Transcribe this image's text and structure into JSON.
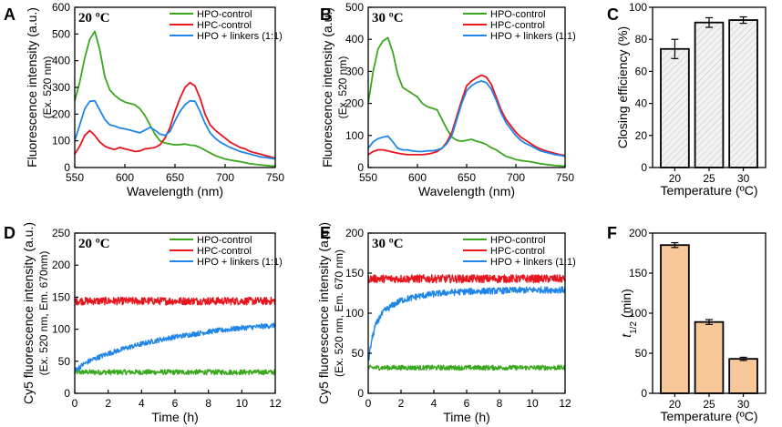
{
  "colors": {
    "green": "#3aa81e",
    "red": "#e8141e",
    "blue": "#1f86e8",
    "bar_gray": "#f2f2f2",
    "bar_orange": "#f8c89a"
  },
  "chart_data": [
    {
      "id": "A",
      "type": "line",
      "panel_letter": "A",
      "title": "20 ºC",
      "xlabel": "Wavelength (nm)",
      "ylabel": "Fluorescence intensity (a.u.)",
      "ylabel2": "(Ex. 520 nm)",
      "xlim": [
        550,
        750
      ],
      "ylim": [
        0,
        600
      ],
      "xticks": [
        "550",
        "600",
        "650",
        "700",
        "750"
      ],
      "yticks": [
        "0",
        "100",
        "200",
        "300",
        "400",
        "500",
        "600"
      ],
      "legend": [
        "HPO-control",
        "HPC-control",
        "HPO + linkers (1:1)"
      ],
      "series": [
        {
          "name": "HPO-control",
          "color": "green",
          "x": [
            550,
            555,
            560,
            565,
            570,
            575,
            580,
            585,
            590,
            595,
            600,
            605,
            610,
            615,
            620,
            625,
            630,
            635,
            640,
            645,
            650,
            655,
            660,
            665,
            670,
            675,
            680,
            685,
            690,
            695,
            700,
            705,
            710,
            715,
            720,
            725,
            730,
            735,
            740,
            745,
            750
          ],
          "y": [
            250,
            320,
            410,
            480,
            510,
            440,
            340,
            290,
            270,
            255,
            245,
            240,
            235,
            220,
            195,
            160,
            125,
            100,
            92,
            88,
            85,
            86,
            88,
            84,
            82,
            75,
            65,
            55,
            45,
            38,
            32,
            28,
            25,
            22,
            18,
            14,
            12,
            10,
            8,
            6,
            5
          ]
        },
        {
          "name": "HPC-control",
          "color": "red",
          "x": [
            550,
            555,
            560,
            565,
            570,
            575,
            580,
            585,
            590,
            595,
            600,
            605,
            610,
            615,
            620,
            625,
            630,
            635,
            640,
            645,
            650,
            655,
            660,
            665,
            670,
            675,
            680,
            685,
            690,
            695,
            700,
            705,
            710,
            715,
            720,
            725,
            730,
            735,
            740,
            745,
            750
          ],
          "y": [
            50,
            80,
            120,
            138,
            120,
            95,
            80,
            72,
            68,
            75,
            70,
            65,
            60,
            62,
            70,
            72,
            75,
            85,
            110,
            150,
            210,
            260,
            300,
            318,
            305,
            260,
            200,
            160,
            140,
            125,
            110,
            95,
            85,
            75,
            70,
            60,
            55,
            50,
            45,
            40,
            35
          ]
        },
        {
          "name": "HPO + linkers (1:1)",
          "color": "blue",
          "x": [
            550,
            555,
            560,
            565,
            570,
            575,
            580,
            585,
            590,
            595,
            600,
            605,
            610,
            615,
            620,
            625,
            630,
            635,
            640,
            645,
            650,
            655,
            660,
            665,
            670,
            675,
            680,
            685,
            690,
            695,
            700,
            705,
            710,
            715,
            720,
            725,
            730,
            735,
            740,
            745,
            750
          ],
          "y": [
            100,
            160,
            220,
            248,
            250,
            215,
            180,
            160,
            155,
            148,
            145,
            140,
            135,
            130,
            140,
            150,
            140,
            125,
            120,
            135,
            175,
            210,
            235,
            250,
            248,
            210,
            165,
            130,
            110,
            95,
            85,
            75,
            68,
            60,
            55,
            50,
            45,
            40,
            38,
            35,
            32
          ]
        }
      ]
    },
    {
      "id": "B",
      "type": "line",
      "panel_letter": "B",
      "title": "30 ºC",
      "xlabel": "Wavelength (nm)",
      "ylabel": "Fluorescence intensity (a.u.)",
      "ylabel2": "(Ex. 520 nm)",
      "xlim": [
        550,
        750
      ],
      "ylim": [
        0,
        500
      ],
      "xticks": [
        "550",
        "600",
        "650",
        "700",
        "750"
      ],
      "yticks": [
        "0",
        "100",
        "200",
        "300",
        "400",
        "500"
      ],
      "legend": [
        "HPO-control",
        "HPC-control",
        "HPO + linkers (1:1)"
      ],
      "series": [
        {
          "name": "HPO-control",
          "color": "green",
          "x": [
            550,
            555,
            560,
            565,
            570,
            575,
            580,
            585,
            590,
            595,
            600,
            605,
            610,
            615,
            620,
            625,
            630,
            635,
            640,
            645,
            650,
            655,
            660,
            665,
            670,
            675,
            680,
            685,
            690,
            695,
            700,
            705,
            710,
            715,
            720,
            725,
            730,
            735,
            740,
            745,
            750
          ],
          "y": [
            200,
            300,
            370,
            395,
            405,
            360,
            290,
            250,
            240,
            230,
            220,
            200,
            190,
            185,
            180,
            150,
            120,
            95,
            85,
            82,
            85,
            88,
            82,
            78,
            72,
            62,
            55,
            45,
            35,
            30,
            25,
            22,
            20,
            18,
            15,
            12,
            10,
            8,
            6,
            5,
            4
          ]
        },
        {
          "name": "HPC-control",
          "color": "red",
          "x": [
            550,
            555,
            560,
            565,
            570,
            575,
            580,
            585,
            590,
            595,
            600,
            605,
            610,
            615,
            620,
            625,
            630,
            635,
            640,
            645,
            650,
            655,
            660,
            665,
            670,
            675,
            680,
            685,
            690,
            695,
            700,
            705,
            710,
            715,
            720,
            725,
            730,
            735,
            740,
            745,
            750
          ],
          "y": [
            40,
            50,
            55,
            55,
            52,
            48,
            45,
            42,
            40,
            40,
            40,
            40,
            42,
            45,
            50,
            60,
            80,
            110,
            160,
            210,
            255,
            270,
            280,
            288,
            282,
            260,
            220,
            180,
            150,
            130,
            110,
            95,
            85,
            75,
            65,
            58,
            52,
            48,
            44,
            40,
            38
          ]
        },
        {
          "name": "HPO + linkers (1:1)",
          "color": "blue",
          "x": [
            550,
            555,
            560,
            565,
            570,
            575,
            580,
            585,
            590,
            595,
            600,
            605,
            610,
            615,
            620,
            625,
            630,
            635,
            640,
            645,
            650,
            655,
            660,
            665,
            670,
            675,
            680,
            685,
            690,
            695,
            700,
            705,
            710,
            715,
            720,
            725,
            730,
            735,
            740,
            745,
            750
          ],
          "y": [
            60,
            80,
            90,
            95,
            98,
            80,
            60,
            55,
            55,
            52,
            50,
            50,
            52,
            52,
            55,
            60,
            75,
            100,
            150,
            200,
            240,
            255,
            265,
            270,
            265,
            245,
            210,
            170,
            140,
            120,
            100,
            85,
            75,
            68,
            60,
            52,
            48,
            44,
            40,
            38,
            35
          ]
        }
      ]
    },
    {
      "id": "C",
      "type": "bar",
      "panel_letter": "C",
      "categories": [
        "20",
        "25",
        "30"
      ],
      "values": [
        74,
        90.5,
        92
      ],
      "errors": [
        6,
        3,
        2
      ],
      "xlabel": "Temperature (ºC)",
      "ylabel": "Closing efficiency (%)",
      "ylim": [
        0,
        100
      ],
      "yticks": [
        "0",
        "20",
        "40",
        "60",
        "80",
        "100"
      ]
    },
    {
      "id": "D",
      "type": "line",
      "panel_letter": "D",
      "title": "20 ºC",
      "xlabel": "Time (h)",
      "ylabel": "Cy5 fluorescence intensity (a.u.)",
      "ylabel2": "(Ex. 520 nm, Em. 670nm)",
      "xlim": [
        0,
        12
      ],
      "ylim": [
        0,
        250
      ],
      "xticks": [
        "0",
        "2",
        "4",
        "6",
        "8",
        "10",
        "12"
      ],
      "yticks": [
        "0",
        "50",
        "100",
        "150",
        "200",
        "250"
      ],
      "legend": [
        "HPO-control",
        "HPC-control",
        "HPO + linkers (1:1)"
      ],
      "series": [
        {
          "name": "HPO-control",
          "color": "green",
          "x": [
            0,
            12
          ],
          "y": [
            33,
            33
          ],
          "noise": 4
        },
        {
          "name": "HPC-control",
          "color": "red",
          "x": [
            0,
            12
          ],
          "y": [
            144,
            144
          ],
          "noise": 6
        },
        {
          "name": "HPO + linkers (1:1)",
          "color": "blue",
          "x": [
            0,
            0.5,
            1,
            2,
            3,
            4,
            5,
            6,
            7,
            8,
            9,
            10,
            11,
            12
          ],
          "y": [
            35,
            45,
            52,
            62,
            70,
            77,
            83,
            88,
            92,
            96,
            99,
            102,
            104,
            106
          ],
          "noise": 4
        }
      ]
    },
    {
      "id": "E",
      "type": "line",
      "panel_letter": "E",
      "title": "30 ºC",
      "xlabel": "Time (h)",
      "ylabel": "Cy5 fluorescence intensity (a.u.)",
      "ylabel2": "(Ex. 520 nm, Em. 670 nm)",
      "xlim": [
        0,
        12
      ],
      "ylim": [
        0,
        200
      ],
      "xticks": [
        "0",
        "2",
        "4",
        "6",
        "8",
        "10",
        "12"
      ],
      "yticks": [
        "0",
        "50",
        "100",
        "150",
        "200"
      ],
      "legend": [
        "HPO-control",
        "HPC-control",
        "HPO + linkers (1:1)"
      ],
      "series": [
        {
          "name": "HPO-control",
          "color": "green",
          "x": [
            0,
            12
          ],
          "y": [
            32,
            32
          ],
          "noise": 3
        },
        {
          "name": "HPC-control",
          "color": "red",
          "x": [
            0,
            12
          ],
          "y": [
            143,
            143
          ],
          "noise": 5
        },
        {
          "name": "HPO + linkers (1:1)",
          "color": "blue",
          "x": [
            0,
            0.2,
            0.4,
            0.7,
            1,
            1.5,
            2,
            3,
            4,
            5,
            6,
            8,
            10,
            12
          ],
          "y": [
            38,
            65,
            82,
            95,
            103,
            110,
            116,
            121,
            124,
            126,
            127,
            128,
            129,
            129
          ],
          "noise": 4
        }
      ]
    },
    {
      "id": "F",
      "type": "bar",
      "panel_letter": "F",
      "categories": [
        "20",
        "25",
        "30"
      ],
      "values": [
        185,
        89,
        43
      ],
      "errors": [
        3,
        3,
        2
      ],
      "xlabel": "Temperature (ºC)",
      "ylabel": "t",
      "ylabel_sub": "1/2",
      "ylabel_unit": " (min)",
      "ylim": [
        0,
        200
      ],
      "yticks": [
        "0",
        "50",
        "100",
        "150",
        "200"
      ]
    }
  ]
}
